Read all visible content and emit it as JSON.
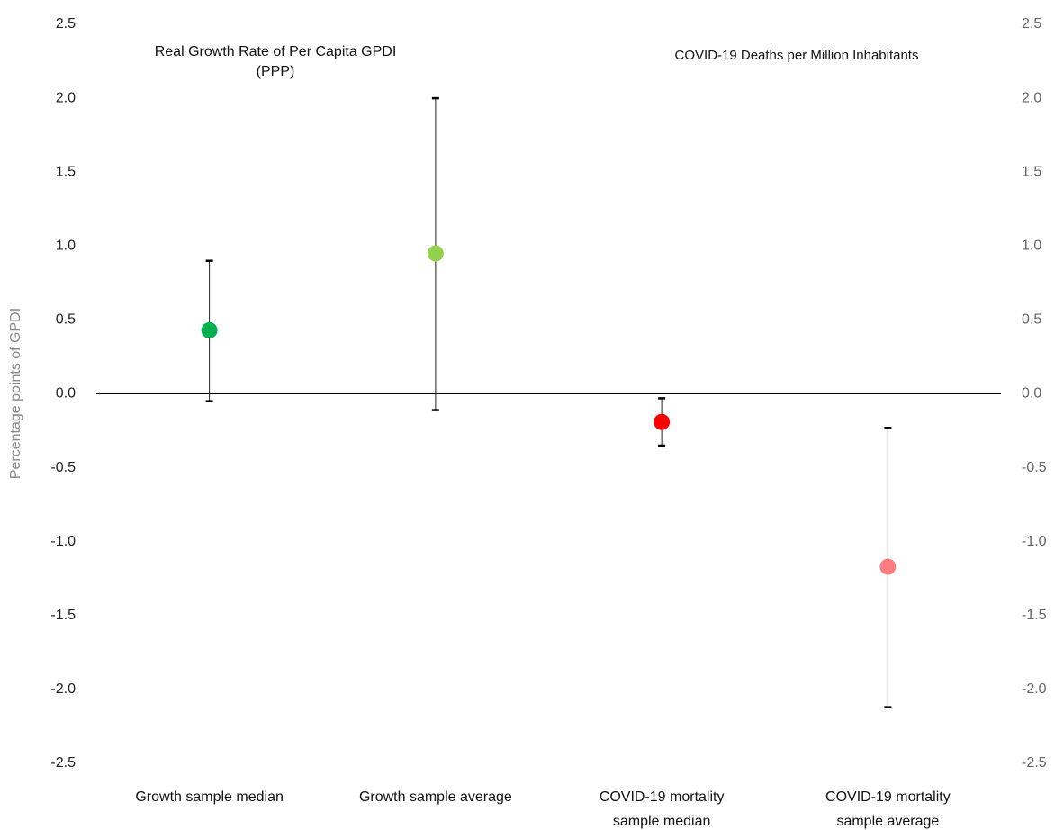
{
  "chart_data": {
    "type": "errorbar",
    "ylabel": "Percentage points of GPDI",
    "annotations": [
      "Real Growth Rate of Per Capita GPDI (PPP)",
      "COVID-19 Deaths per Million Inhabitants"
    ],
    "categories": [
      "Growth sample median",
      "Growth sample average",
      "COVID-19 mortality sample median",
      "COVID-19 mortality sample average"
    ],
    "series": [
      {
        "colors": [
          "#00b050",
          "#92d050",
          "#ff0000",
          "#ff7c80"
        ],
        "values": [
          0.43,
          0.95,
          -0.19,
          -1.17
        ],
        "upper": [
          0.9,
          2.0,
          -0.03,
          -0.23
        ],
        "lower": [
          -0.05,
          -0.11,
          -0.35,
          -2.12
        ]
      }
    ],
    "ylim": [
      -2.5,
      2.5
    ],
    "yticks": [
      2.5,
      {
        "value": 2.0,
        "label": "2.0"
      },
      1.5,
      {
        "value": 1.0,
        "label": "1.0"
      },
      0.5,
      {
        "value": 0.0,
        "label": "0.0"
      },
      -0.5,
      {
        "value": -1.0,
        "label": "-1.0"
      },
      -1.5,
      {
        "value": -2.0,
        "label": "-2.0"
      },
      -2.5
    ],
    "y2lim": [
      -2.5,
      2.5
    ],
    "y2ticks": [
      2.5,
      {
        "value": 2.0,
        "label": "2.0"
      },
      1.5,
      {
        "value": 1.0,
        "label": "1.0"
      },
      0.5,
      {
        "value": 0.0,
        "label": "0.0"
      },
      -0.5,
      {
        "value": -1.0,
        "label": "-1.0"
      },
      -1.5,
      {
        "value": -2.0,
        "label": "-2.0"
      },
      -2.5
    ]
  }
}
